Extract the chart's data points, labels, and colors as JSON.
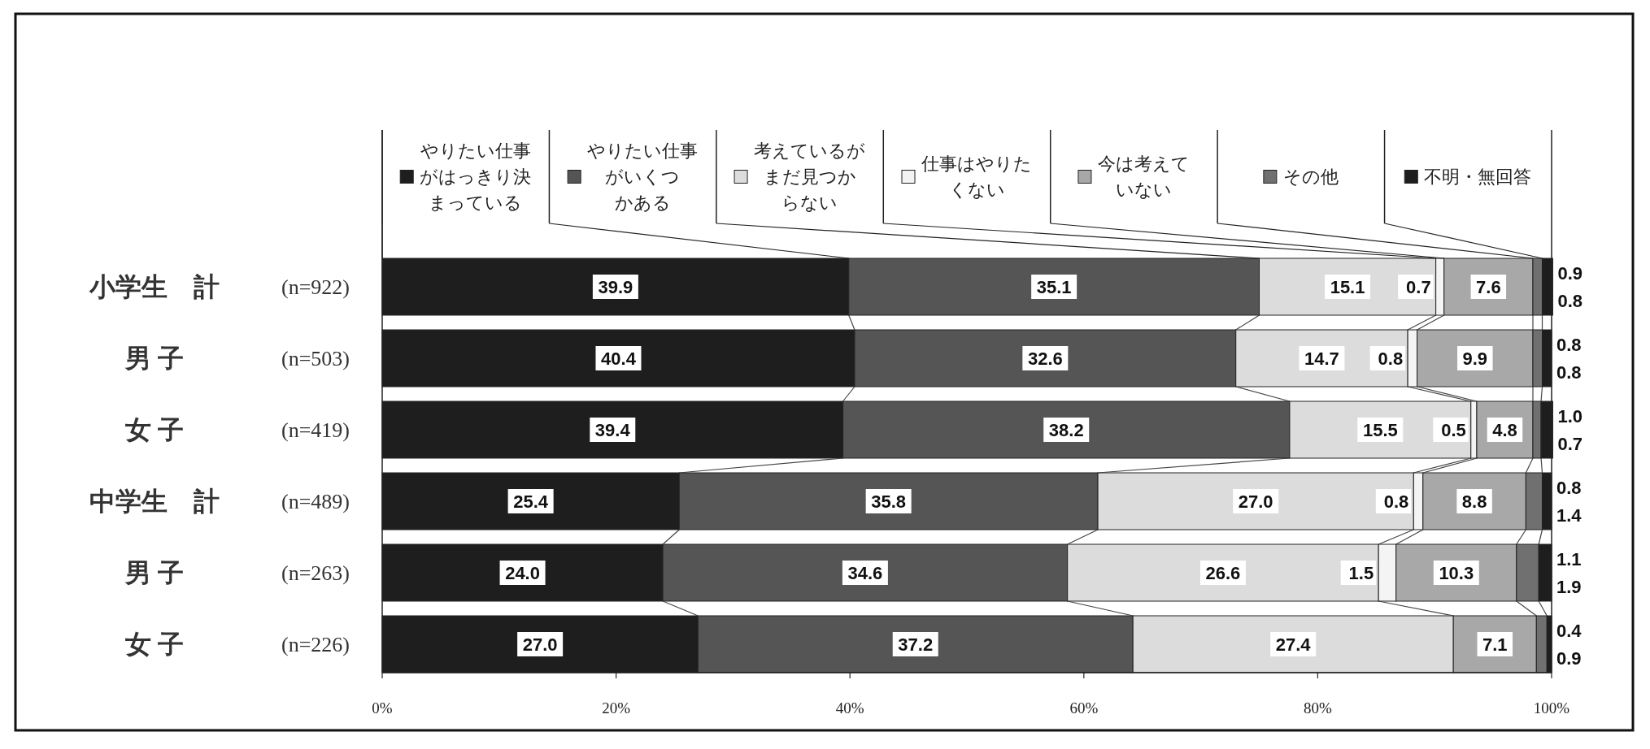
{
  "chart_data": {
    "type": "bar",
    "orientation": "horizontal",
    "stacked": true,
    "categories": [
      "小学生　計",
      "男 子",
      "女 子",
      "中学生　計",
      "男 子",
      "女 子"
    ],
    "y2_categories": [
      "(n=922)",
      "(n=503)",
      "(n=419)",
      "(n=489)",
      "(n=263)",
      "(n=226)"
    ],
    "xlim": [
      0,
      100
    ],
    "xticks": [
      {
        "value": 0,
        "label": "0%"
      },
      {
        "value": 20,
        "label": "20%"
      },
      {
        "value": 40,
        "label": "40%"
      },
      {
        "value": 60,
        "label": "60%"
      },
      {
        "value": 80,
        "label": "80%"
      },
      {
        "value": 100,
        "label": "100%"
      }
    ],
    "legend": "top",
    "series": [
      {
        "name": "やりたい仕事がはっきり決まっている",
        "color": "#1e1e1e",
        "values": [
          39.9,
          40.4,
          39.4,
          25.4,
          24.0,
          27.0
        ],
        "value_labels": [
          "39.9",
          "40.4",
          "39.4",
          "25.4",
          "24.0",
          "27.0"
        ]
      },
      {
        "name": "やりたい仕事がいくつかある",
        "color": "#555555",
        "values": [
          35.1,
          32.6,
          38.2,
          35.8,
          34.6,
          37.2
        ],
        "value_labels": [
          "35.1",
          "32.6",
          "38.2",
          "35.8",
          "34.6",
          "37.2"
        ]
      },
      {
        "name": "考えているがまだ見つからない",
        "color": "#dcdcdc",
        "values": [
          15.1,
          14.7,
          15.5,
          27.0,
          26.6,
          27.4
        ],
        "value_labels": [
          "15.1",
          "14.7",
          "15.5",
          "27.0",
          "26.6",
          "27.4"
        ]
      },
      {
        "name": "仕事はやりたくない",
        "color": "#f4f4f4",
        "values": [
          0.7,
          0.8,
          0.5,
          0.8,
          1.5,
          null
        ],
        "value_labels": [
          "0.7",
          "0.8",
          "0.5",
          "0.8",
          "1.5",
          null
        ]
      },
      {
        "name": "今は考えていない",
        "color": "#a8a8a8",
        "values": [
          7.6,
          9.9,
          4.8,
          8.8,
          10.3,
          7.1
        ],
        "value_labels": [
          "7.6",
          "9.9",
          "4.8",
          "8.8",
          "10.3",
          "7.1"
        ]
      },
      {
        "name": "その他",
        "color": "#707070",
        "values": [
          0.8,
          0.8,
          0.7,
          1.4,
          1.9,
          0.9
        ],
        "value_labels": [
          "0.8",
          "0.8",
          "0.7",
          "1.4",
          "1.9",
          "0.9"
        ]
      },
      {
        "name": "不明・無回答",
        "color": "#1e1e1e",
        "values": [
          0.9,
          0.8,
          1.0,
          0.8,
          1.1,
          0.4
        ],
        "value_labels": [
          "0.9",
          "0.8",
          "1.0",
          "0.8",
          "1.1",
          "0.4"
        ]
      }
    ]
  }
}
